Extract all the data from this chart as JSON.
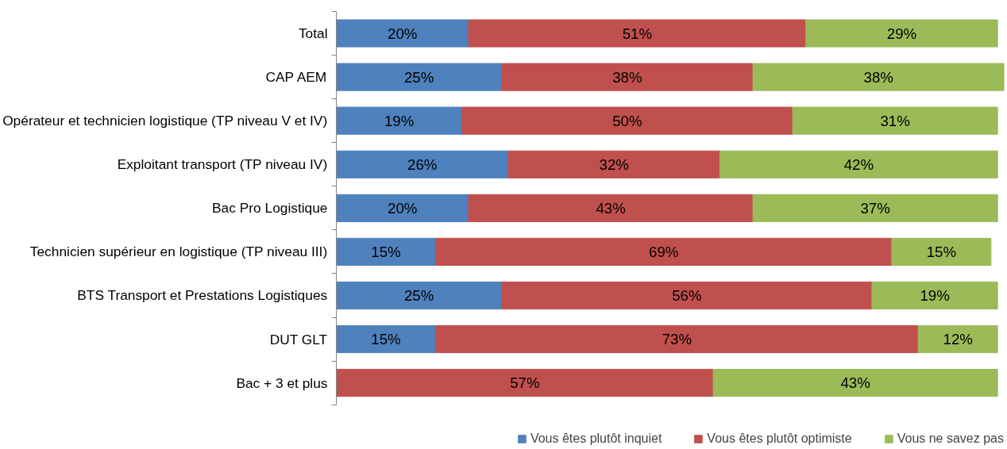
{
  "chart_data": {
    "type": "bar",
    "orientation": "horizontal",
    "stacked": true,
    "legend": "bottom",
    "grid": false,
    "categories": [
      "Total",
      "CAP AEM",
      "Opérateur et technicien logistique (TP niveau V et IV)",
      "Exploitant transport (TP niveau IV)",
      "Bac Pro Logistique",
      "Technicien supérieur en logistique (TP niveau III)",
      "BTS Transport et Prestations Logistiques",
      "DUT GLT",
      "Bac + 3 et plus"
    ],
    "series": [
      {
        "name": "Vous êtes plutôt inquiet",
        "color": "#4f81bd",
        "values": [
          20,
          25,
          19,
          26,
          20,
          15,
          25,
          15,
          null
        ],
        "value_labels": [
          "20%",
          "25%",
          "19%",
          "26%",
          "20%",
          "15%",
          "25%",
          "15%",
          null
        ]
      },
      {
        "name": "Vous êtes plutôt optimiste",
        "color": "#c0504d",
        "values": [
          51,
          38,
          50,
          32,
          43,
          69,
          56,
          73,
          57
        ],
        "value_labels": [
          "51%",
          "38%",
          "50%",
          "32%",
          "43%",
          "69%",
          "56%",
          "73%",
          "57%"
        ]
      },
      {
        "name": "Vous ne savez pas",
        "color": "#9bbb59",
        "values": [
          29,
          38,
          31,
          42,
          37,
          15,
          19,
          12,
          43
        ],
        "value_labels": [
          "29%",
          "38%",
          "31%",
          "42%",
          "37%",
          "15%",
          "19%",
          "12%",
          "43%"
        ]
      }
    ]
  }
}
